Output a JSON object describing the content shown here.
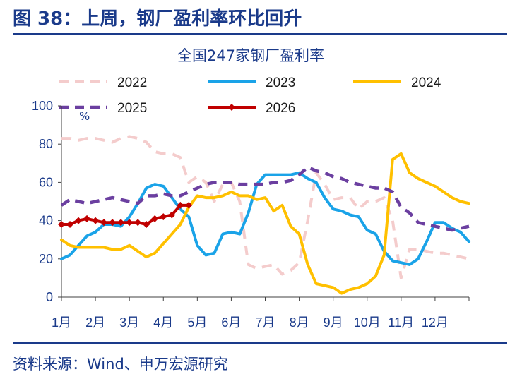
{
  "header": {
    "figure_title": "图 38：上周，钢厂盈利率环比回升",
    "source": "资料来源：Wind、申万宏源研究"
  },
  "chart_data": {
    "type": "line",
    "title": "全国247家钢厂盈利率",
    "unit_label": "%",
    "ylim": [
      0,
      100
    ],
    "yticks": [
      0,
      20,
      40,
      60,
      80,
      100
    ],
    "xlim": [
      1,
      13
    ],
    "xticks": [
      {
        "label": "1月",
        "x": 1
      },
      {
        "label": "2月",
        "x": 2
      },
      {
        "label": "3月",
        "x": 3
      },
      {
        "label": "4月",
        "x": 4
      },
      {
        "label": "5月",
        "x": 5
      },
      {
        "label": "6月",
        "x": 6
      },
      {
        "label": "7月",
        "x": 7
      },
      {
        "label": "8月",
        "x": 8
      },
      {
        "label": "9月",
        "x": 9
      },
      {
        "label": "10月",
        "x": 10
      },
      {
        "label": "11月",
        "x": 11
      },
      {
        "label": "12月",
        "x": 12
      }
    ],
    "legend_position": "top",
    "grid": false,
    "series": [
      {
        "name": "2022",
        "color": "#f4cccc",
        "style": "dashed",
        "x": [
          1,
          1.25,
          1.5,
          1.75,
          2,
          2.25,
          2.5,
          2.75,
          3,
          3.25,
          3.5,
          3.75,
          4,
          4.25,
          4.5,
          4.75,
          5,
          5.25,
          5.5,
          5.75,
          6,
          6.25,
          6.5,
          6.75,
          7,
          7.25,
          7.5,
          7.75,
          8,
          8.25,
          8.5,
          8.75,
          9,
          9.25,
          9.5,
          9.75,
          10,
          10.25,
          10.5,
          10.75,
          11,
          11.25,
          11.5,
          11.75,
          12,
          12.25,
          12.5,
          12.75,
          13
        ],
        "y": [
          83,
          83,
          82,
          83,
          83,
          82,
          81,
          83,
          84,
          83,
          81,
          76,
          75,
          75,
          73,
          60,
          63,
          60,
          50,
          59,
          60,
          50,
          17,
          15,
          16,
          17,
          12,
          14,
          18,
          40,
          65,
          59,
          51,
          52,
          52,
          46,
          50,
          50,
          52,
          40,
          10,
          25,
          25,
          24,
          23,
          23,
          22,
          21,
          20
        ]
      },
      {
        "name": "2023",
        "color": "#1aa3e8",
        "style": "solid",
        "x": [
          1,
          1.25,
          1.5,
          1.75,
          2,
          2.25,
          2.5,
          2.75,
          3,
          3.25,
          3.5,
          3.75,
          4,
          4.25,
          4.5,
          4.75,
          5,
          5.25,
          5.5,
          5.75,
          6,
          6.25,
          6.5,
          6.75,
          7,
          7.25,
          7.5,
          7.75,
          8,
          8.25,
          8.5,
          8.75,
          9,
          9.25,
          9.5,
          9.75,
          10,
          10.25,
          10.5,
          10.75,
          11,
          11.25,
          11.5,
          11.75,
          12,
          12.25,
          12.5,
          12.75,
          13
        ],
        "y": [
          20,
          22,
          27,
          32,
          34,
          38,
          38,
          37,
          42,
          49,
          57,
          59,
          58,
          52,
          46,
          42,
          27,
          22,
          23,
          33,
          34,
          33,
          44,
          59,
          64,
          64,
          64,
          64,
          65,
          62,
          60,
          52,
          46,
          45,
          43,
          42,
          35,
          33,
          24,
          19,
          18,
          17,
          20,
          29,
          39,
          39,
          36,
          34,
          29
        ]
      },
      {
        "name": "2024",
        "color": "#ffc000",
        "style": "solid",
        "x": [
          1,
          1.25,
          1.5,
          1.75,
          2,
          2.25,
          2.5,
          2.75,
          3,
          3.25,
          3.5,
          3.75,
          4,
          4.25,
          4.5,
          4.75,
          5,
          5.25,
          5.5,
          5.75,
          6,
          6.25,
          6.5,
          6.75,
          7,
          7.25,
          7.5,
          7.75,
          8,
          8.25,
          8.5,
          8.75,
          9,
          9.25,
          9.5,
          9.75,
          10,
          10.25,
          10.5,
          10.75,
          11,
          11.25,
          11.5,
          11.75,
          12,
          12.25,
          12.5,
          12.75,
          13
        ],
        "y": [
          30,
          27,
          26,
          26,
          26,
          26,
          25,
          25,
          27,
          24,
          21,
          23,
          28,
          33,
          38,
          47,
          53,
          52,
          52,
          53,
          55,
          53,
          53,
          51,
          52,
          45,
          48,
          37,
          33,
          17,
          7,
          6,
          5,
          2,
          4,
          5,
          7,
          11,
          22,
          72,
          75,
          65,
          62,
          60,
          58,
          55,
          52,
          50,
          49
        ]
      },
      {
        "name": "2025",
        "color": "#6b3fa0",
        "style": "dashed",
        "x": [
          1,
          1.25,
          1.5,
          1.75,
          2,
          2.25,
          2.5,
          2.75,
          3,
          3.25,
          3.5,
          3.75,
          4,
          4.25,
          4.5,
          4.75,
          5,
          5.25,
          5.5,
          5.75,
          6,
          6.25,
          6.5,
          6.75,
          7,
          7.25,
          7.5,
          7.75,
          8,
          8.25,
          8.5,
          8.75,
          9,
          9.25,
          9.5,
          9.75,
          10,
          10.25,
          10.5,
          10.75,
          11,
          11.25,
          11.5,
          11.75,
          12,
          12.25,
          12.5,
          12.75,
          13
        ],
        "y": [
          48,
          51,
          50,
          49,
          50,
          51,
          52,
          51,
          50,
          49,
          53,
          53,
          54,
          53,
          53,
          55,
          57,
          59,
          60,
          60,
          60,
          59,
          59,
          59,
          59,
          60,
          60,
          61,
          64,
          68,
          66,
          65,
          63,
          62,
          60,
          59,
          58,
          57,
          57,
          55,
          47,
          44,
          39,
          38,
          37,
          36,
          35,
          36,
          37
        ]
      },
      {
        "name": "2026",
        "color": "#c00000",
        "style": "solid-markers",
        "x": [
          1,
          1.25,
          1.5,
          1.75,
          2,
          2.25,
          2.5,
          2.75,
          3,
          3.25,
          3.5,
          3.75,
          4,
          4.25,
          4.5,
          4.75
        ],
        "y": [
          38,
          38,
          40,
          41,
          40,
          39,
          39,
          39,
          39,
          39,
          38,
          41,
          42,
          43,
          48,
          48
        ]
      }
    ]
  }
}
